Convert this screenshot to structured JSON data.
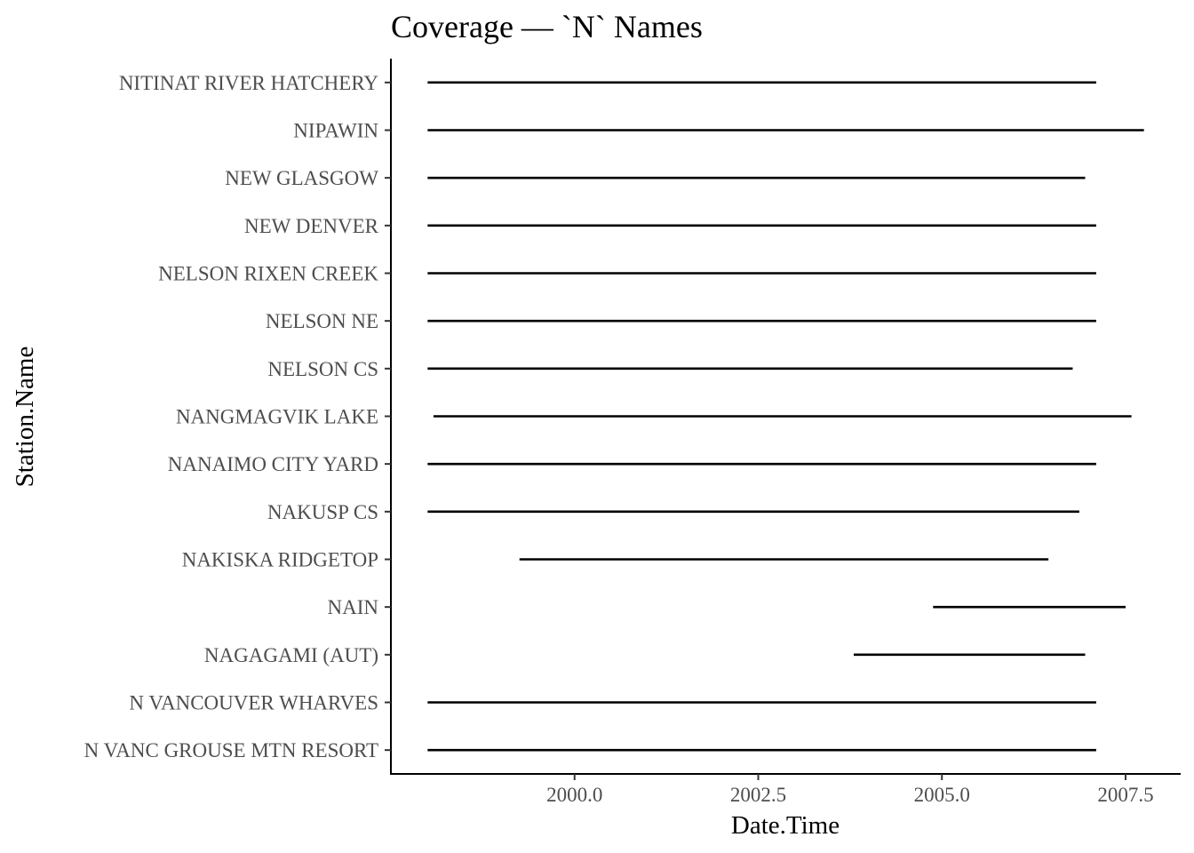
{
  "chart_data": {
    "type": "segment",
    "title": "Coverage — `N` Names",
    "xlabel": "Date.Time",
    "ylabel": "Station.Name",
    "xlim": [
      1997.5,
      2008.25
    ],
    "xticks": [
      2000.0,
      2002.5,
      2005.0,
      2007.5
    ],
    "xtick_labels": [
      "2000.0",
      "2002.5",
      "2005.0",
      "2007.5"
    ],
    "grid": false,
    "legend": "none",
    "stations": [
      {
        "name": "N VANC GROUSE MTN RESORT",
        "start": 1998.0,
        "end": 2007.1
      },
      {
        "name": "N VANCOUVER WHARVES",
        "start": 1998.0,
        "end": 2007.1
      },
      {
        "name": "NAGAGAMI (AUT)",
        "start": 2003.8,
        "end": 2006.95
      },
      {
        "name": "NAIN",
        "start": 2004.88,
        "end": 2007.5
      },
      {
        "name": "NAKISKA RIDGETOP",
        "start": 1999.25,
        "end": 2006.45
      },
      {
        "name": "NAKUSP CS",
        "start": 1998.0,
        "end": 2006.87
      },
      {
        "name": "NANAIMO CITY YARD",
        "start": 1998.0,
        "end": 2007.1
      },
      {
        "name": "NANGMAGVIK LAKE",
        "start": 1998.08,
        "end": 2007.58
      },
      {
        "name": "NELSON CS",
        "start": 1998.0,
        "end": 2006.78
      },
      {
        "name": "NELSON NE",
        "start": 1998.0,
        "end": 2007.1
      },
      {
        "name": "NELSON RIXEN CREEK",
        "start": 1998.0,
        "end": 2007.1
      },
      {
        "name": "NEW DENVER",
        "start": 1998.0,
        "end": 2007.1
      },
      {
        "name": "NEW GLASGOW",
        "start": 1998.0,
        "end": 2006.95
      },
      {
        "name": "NIPAWIN",
        "start": 1998.0,
        "end": 2007.75
      },
      {
        "name": "NITINAT RIVER HATCHERY",
        "start": 1998.0,
        "end": 2007.1
      }
    ]
  }
}
